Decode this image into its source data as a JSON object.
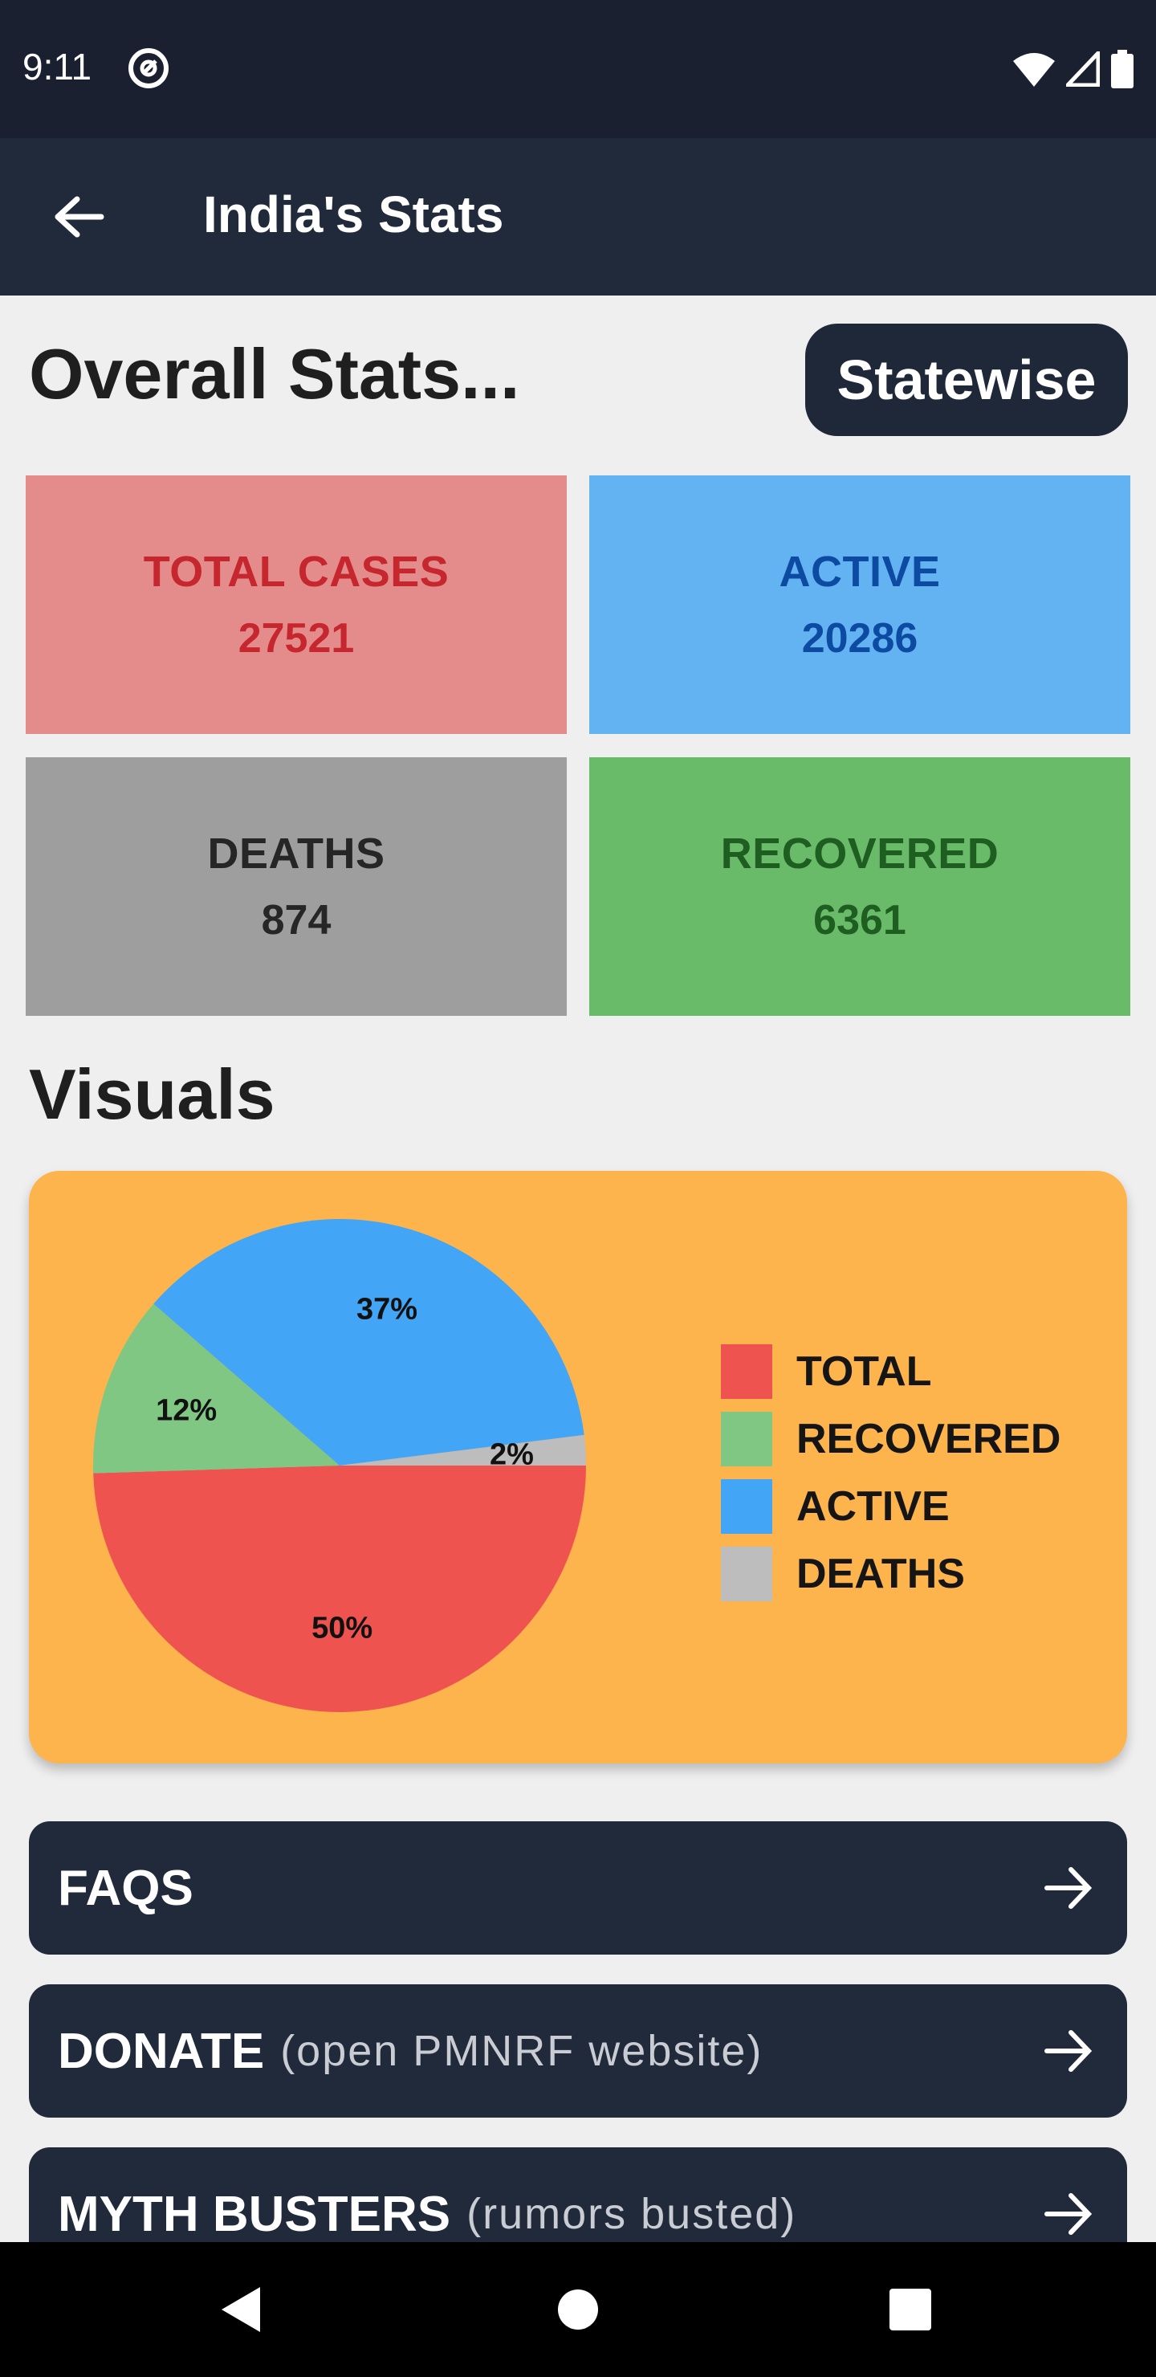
{
  "status_bar": {
    "time": "9:11"
  },
  "app_bar": {
    "title": "India's Stats"
  },
  "overall": {
    "title": "Overall Stats...",
    "statewise_label": "Statewise",
    "cards": [
      {
        "label": "TOTAL CASES",
        "value": "27521",
        "bg": "#e48c8c",
        "fg": "#c6262e"
      },
      {
        "label": "ACTIVE",
        "value": "20286",
        "bg": "#63b3f3",
        "fg": "#0d4ba3"
      },
      {
        "label": "DEATHS",
        "value": "874",
        "bg": "#9e9e9e",
        "fg": "#262626"
      },
      {
        "label": "RECOVERED",
        "value": "6361",
        "bg": "#69bb69",
        "fg": "#1e5e21"
      }
    ]
  },
  "visuals": {
    "title": "Visuals",
    "chart_data": {
      "type": "pie",
      "slices": [
        {
          "label": "TOTAL",
          "percent": 50,
          "text": "50%",
          "color": "#ef5350"
        },
        {
          "label": "RECOVERED",
          "percent": 12,
          "text": "12%",
          "color": "#81c784"
        },
        {
          "label": "ACTIVE",
          "percent": 37,
          "text": "37%",
          "color": "#42a5f5"
        },
        {
          "label": "DEATHS",
          "percent": 2,
          "text": "2%",
          "color": "#bdbdbd"
        }
      ],
      "legend_position": "right"
    }
  },
  "menu": [
    {
      "main": "FAQS",
      "sub": ""
    },
    {
      "main": "DONATE",
      "sub": "(open PMNRF website)"
    },
    {
      "main": "MYTH BUSTERS",
      "sub": "(rumors busted)"
    }
  ]
}
